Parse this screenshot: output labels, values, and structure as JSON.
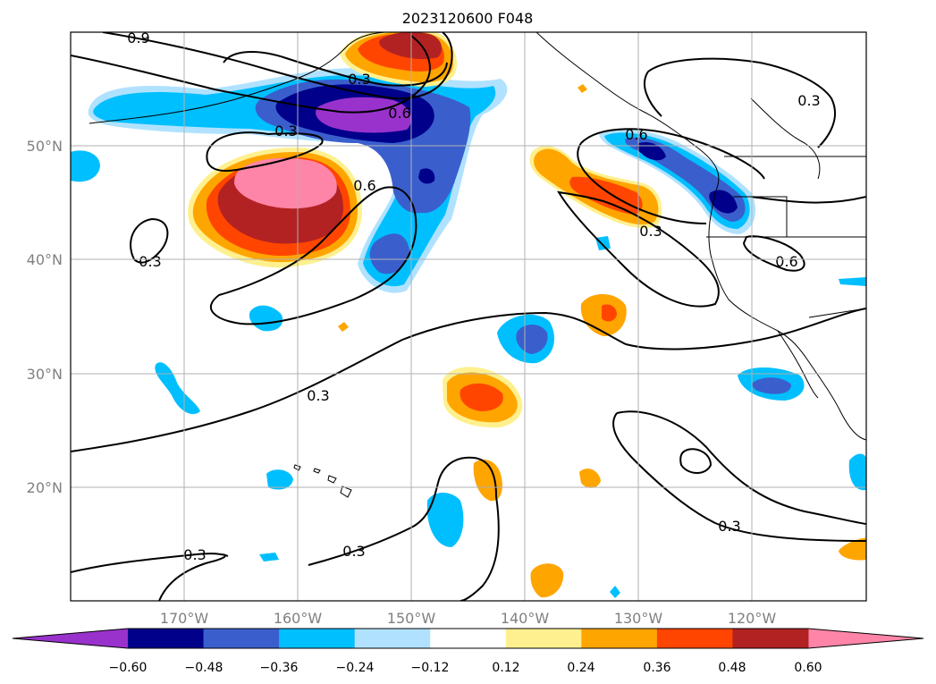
{
  "title": "2023120600 F048",
  "lat_labels": [
    "50°N",
    "40°N",
    "30°N",
    "20°N"
  ],
  "lon_labels": [
    "170°W",
    "160°W",
    "150°W",
    "140°W",
    "130°W",
    "120°W"
  ],
  "contour_labels": [
    "0.9",
    "0.6",
    "0.3",
    "0.6",
    "0.3",
    "0.3",
    "0.6",
    "0.3",
    "0.6",
    "0.3",
    "0.3",
    "0.3",
    "0.3",
    "0.3"
  ],
  "colorbar": {
    "ticks": [
      "−0.60",
      "−0.48",
      "−0.36",
      "−0.24",
      "−0.12",
      "0.12",
      "0.24",
      "0.36",
      "0.48",
      "0.60"
    ],
    "colors": [
      "#9932cc",
      "#00008b",
      "#3a5fcd",
      "#00bfff",
      "#b0e2ff",
      "#ffffff",
      "#fff08f",
      "#ffa500",
      "#ff4500",
      "#b22222",
      "#ff85a8",
      "#ff85a8"
    ]
  },
  "colors": {
    "purple": "#9932cc",
    "navy": "#00008b",
    "royalblue": "#3a5fcd",
    "deepskyblue": "#00bfff",
    "lightblue": "#b0e2ff",
    "lightyellow": "#fff08f",
    "orange": "#ffa500",
    "orangered": "#ff4500",
    "firebrick": "#b22222",
    "pink": "#ff85a8"
  }
}
